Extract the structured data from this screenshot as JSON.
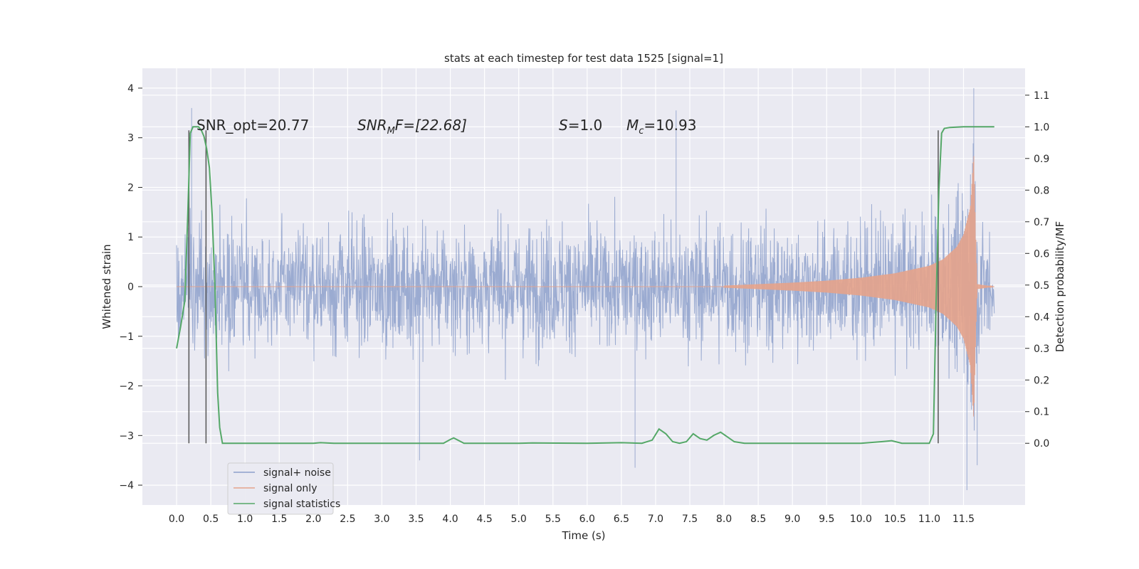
{
  "chart_data": {
    "type": "line",
    "title": "stats at each timestep for test data 1525 [signal=1]",
    "xlabel": "Time (s)",
    "ylabel": "Whitened strain",
    "y2label": "Detection probability/MF",
    "xlim": [
      -0.5,
      12.4
    ],
    "ylim": [
      -4.4,
      4.4
    ],
    "y2lim": [
      -0.195,
      1.185
    ],
    "x_ticks": [
      0.0,
      0.5,
      1.0,
      1.5,
      2.0,
      2.5,
      3.0,
      3.5,
      4.0,
      4.5,
      5.0,
      5.5,
      6.0,
      6.5,
      7.0,
      7.5,
      8.0,
      8.5,
      9.0,
      9.5,
      10.0,
      10.5,
      11.0,
      11.5
    ],
    "x_tick_labels": [
      "0.0",
      "0.5",
      "1.0",
      "1.5",
      "2.0",
      "2.5",
      "3.0",
      "3.5",
      "4.0",
      "4.5",
      "5.0",
      "5.5",
      "6.0",
      "6.5",
      "7.0",
      "7.5",
      "8.0",
      "8.5",
      "9.0",
      "9.5",
      "10.0",
      "10.5",
      "11.0",
      "11.5"
    ],
    "y_ticks": [
      -4,
      -3,
      -2,
      -1,
      0,
      1,
      2,
      3,
      4
    ],
    "y_tick_labels": [
      "−4",
      "−3",
      "−2",
      "−1",
      "0",
      "1",
      "2",
      "3",
      "4"
    ],
    "y2_ticks": [
      0.0,
      0.1,
      0.2,
      0.3,
      0.4,
      0.5,
      0.6,
      0.7,
      0.8,
      0.9,
      1.0,
      1.1
    ],
    "y2_tick_labels": [
      "0.0",
      "0.1",
      "0.2",
      "0.3",
      "0.4",
      "0.5",
      "0.6",
      "0.7",
      "0.8",
      "0.9",
      "1.0",
      "1.1"
    ],
    "grid": true,
    "legend_position": "lower-left",
    "annotations": {
      "snr_opt": "SNR_opt=20.77",
      "snr_mf_main": "SNR",
      "snr_mf_sub": "M",
      "snr_mf_rest": "F=[22.68]",
      "s_sym": "S",
      "s_val": "=1.0",
      "mc_sym": "M",
      "mc_sub": "c",
      "mc_val": "=10.93"
    },
    "vertical_markers_x": [
      0.18,
      0.43,
      11.13
    ],
    "series": [
      {
        "name": "signal+ noise",
        "axis": "left",
        "color": "#8da0cb",
        "description_envelope": {
          "x": [
            0.0,
            11.95
          ],
          "typical_max": 2.2,
          "typical_min": -2.1,
          "extremes": [
            [
              0.22,
              3.6
            ],
            [
              7.3,
              3.55
            ],
            [
              11.65,
              4.0
            ],
            [
              3.55,
              -3.5
            ],
            [
              6.7,
              -3.65
            ],
            [
              11.55,
              -4.1
            ],
            [
              11.7,
              -3.6
            ]
          ]
        }
      },
      {
        "name": "signal only",
        "axis": "left",
        "color": "#e5a38b",
        "envelope": {
          "x": [
            8.0,
            9.0,
            9.5,
            10.0,
            10.5,
            11.0,
            11.2,
            11.4,
            11.5,
            11.6,
            11.65,
            11.68,
            11.7,
            11.95
          ],
          "amp": [
            0.02,
            0.08,
            0.12,
            0.18,
            0.27,
            0.42,
            0.55,
            0.8,
            1.05,
            1.6,
            2.7,
            1.0,
            0.05,
            0.0
          ]
        }
      },
      {
        "name": "signal statistics",
        "axis": "right",
        "color": "#55a868",
        "x": [
          0.0,
          0.06,
          0.12,
          0.16,
          0.2,
          0.24,
          0.28,
          0.32,
          0.36,
          0.4,
          0.44,
          0.48,
          0.52,
          0.56,
          0.6,
          0.63,
          0.67,
          0.8,
          1.5,
          2.0,
          2.1,
          2.3,
          3.0,
          3.9,
          4.0,
          4.05,
          4.2,
          5.0,
          5.2,
          6.0,
          6.5,
          6.8,
          6.95,
          7.05,
          7.15,
          7.25,
          7.35,
          7.45,
          7.55,
          7.65,
          7.75,
          7.85,
          7.95,
          8.05,
          8.15,
          8.3,
          9.0,
          10.0,
          10.3,
          10.45,
          10.6,
          11.0,
          11.06,
          11.1,
          11.14,
          11.18,
          11.22,
          11.3,
          11.5,
          11.95
        ],
        "y": [
          0.3,
          0.37,
          0.45,
          0.7,
          0.98,
          1.0,
          1.0,
          1.0,
          0.99,
          0.97,
          0.93,
          0.87,
          0.72,
          0.5,
          0.16,
          0.05,
          0.0,
          0.0,
          0.0,
          0.0,
          0.002,
          0.0,
          0.0,
          0.0,
          0.012,
          0.017,
          0.0,
          0.0,
          0.001,
          0.0,
          0.002,
          0.0,
          0.01,
          0.045,
          0.03,
          0.005,
          0.0,
          0.005,
          0.03,
          0.015,
          0.01,
          0.025,
          0.035,
          0.02,
          0.005,
          0.0,
          0.0,
          0.0,
          0.005,
          0.008,
          0.0,
          0.0,
          0.03,
          0.45,
          0.8,
          0.98,
          0.995,
          0.998,
          1.0,
          1.0
        ]
      }
    ]
  }
}
